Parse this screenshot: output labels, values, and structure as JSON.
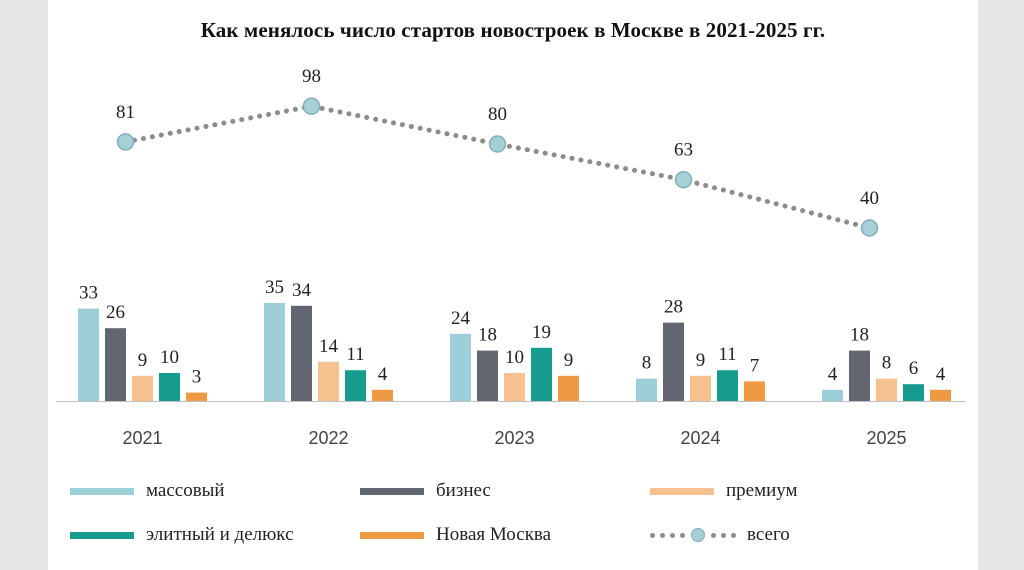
{
  "chart_data": {
    "type": "bar",
    "title": "Как менялось число стартов новостроек в Москве в 2021-2025 гг.",
    "categories": [
      "2021",
      "2022",
      "2023",
      "2024",
      "2025"
    ],
    "series": [
      {
        "name": "массовый",
        "color": "#9dcfd8",
        "values": [
          33,
          35,
          24,
          8,
          4
        ]
      },
      {
        "name": "бизнес",
        "color": "#616670",
        "values": [
          26,
          34,
          18,
          28,
          18
        ]
      },
      {
        "name": "премиум",
        "color": "#f6c18e",
        "values": [
          9,
          14,
          10,
          9,
          8
        ]
      },
      {
        "name": "элитный и делюкс",
        "color": "#169c8c",
        "values": [
          10,
          11,
          19,
          11,
          6
        ]
      },
      {
        "name": "Новая Москва",
        "color": "#ee9a43",
        "values": [
          3,
          4,
          9,
          7,
          4
        ]
      }
    ],
    "line_series": {
      "name": "всего",
      "type": "line",
      "style": "dotted",
      "color": "#8c8c8c",
      "marker_color": "#a6cfd6",
      "values": [
        81,
        98,
        80,
        63,
        40
      ]
    },
    "ylim": [
      0,
      100
    ],
    "xlabel": "",
    "ylabel": "",
    "grid": false,
    "legend_position": "bottom"
  }
}
